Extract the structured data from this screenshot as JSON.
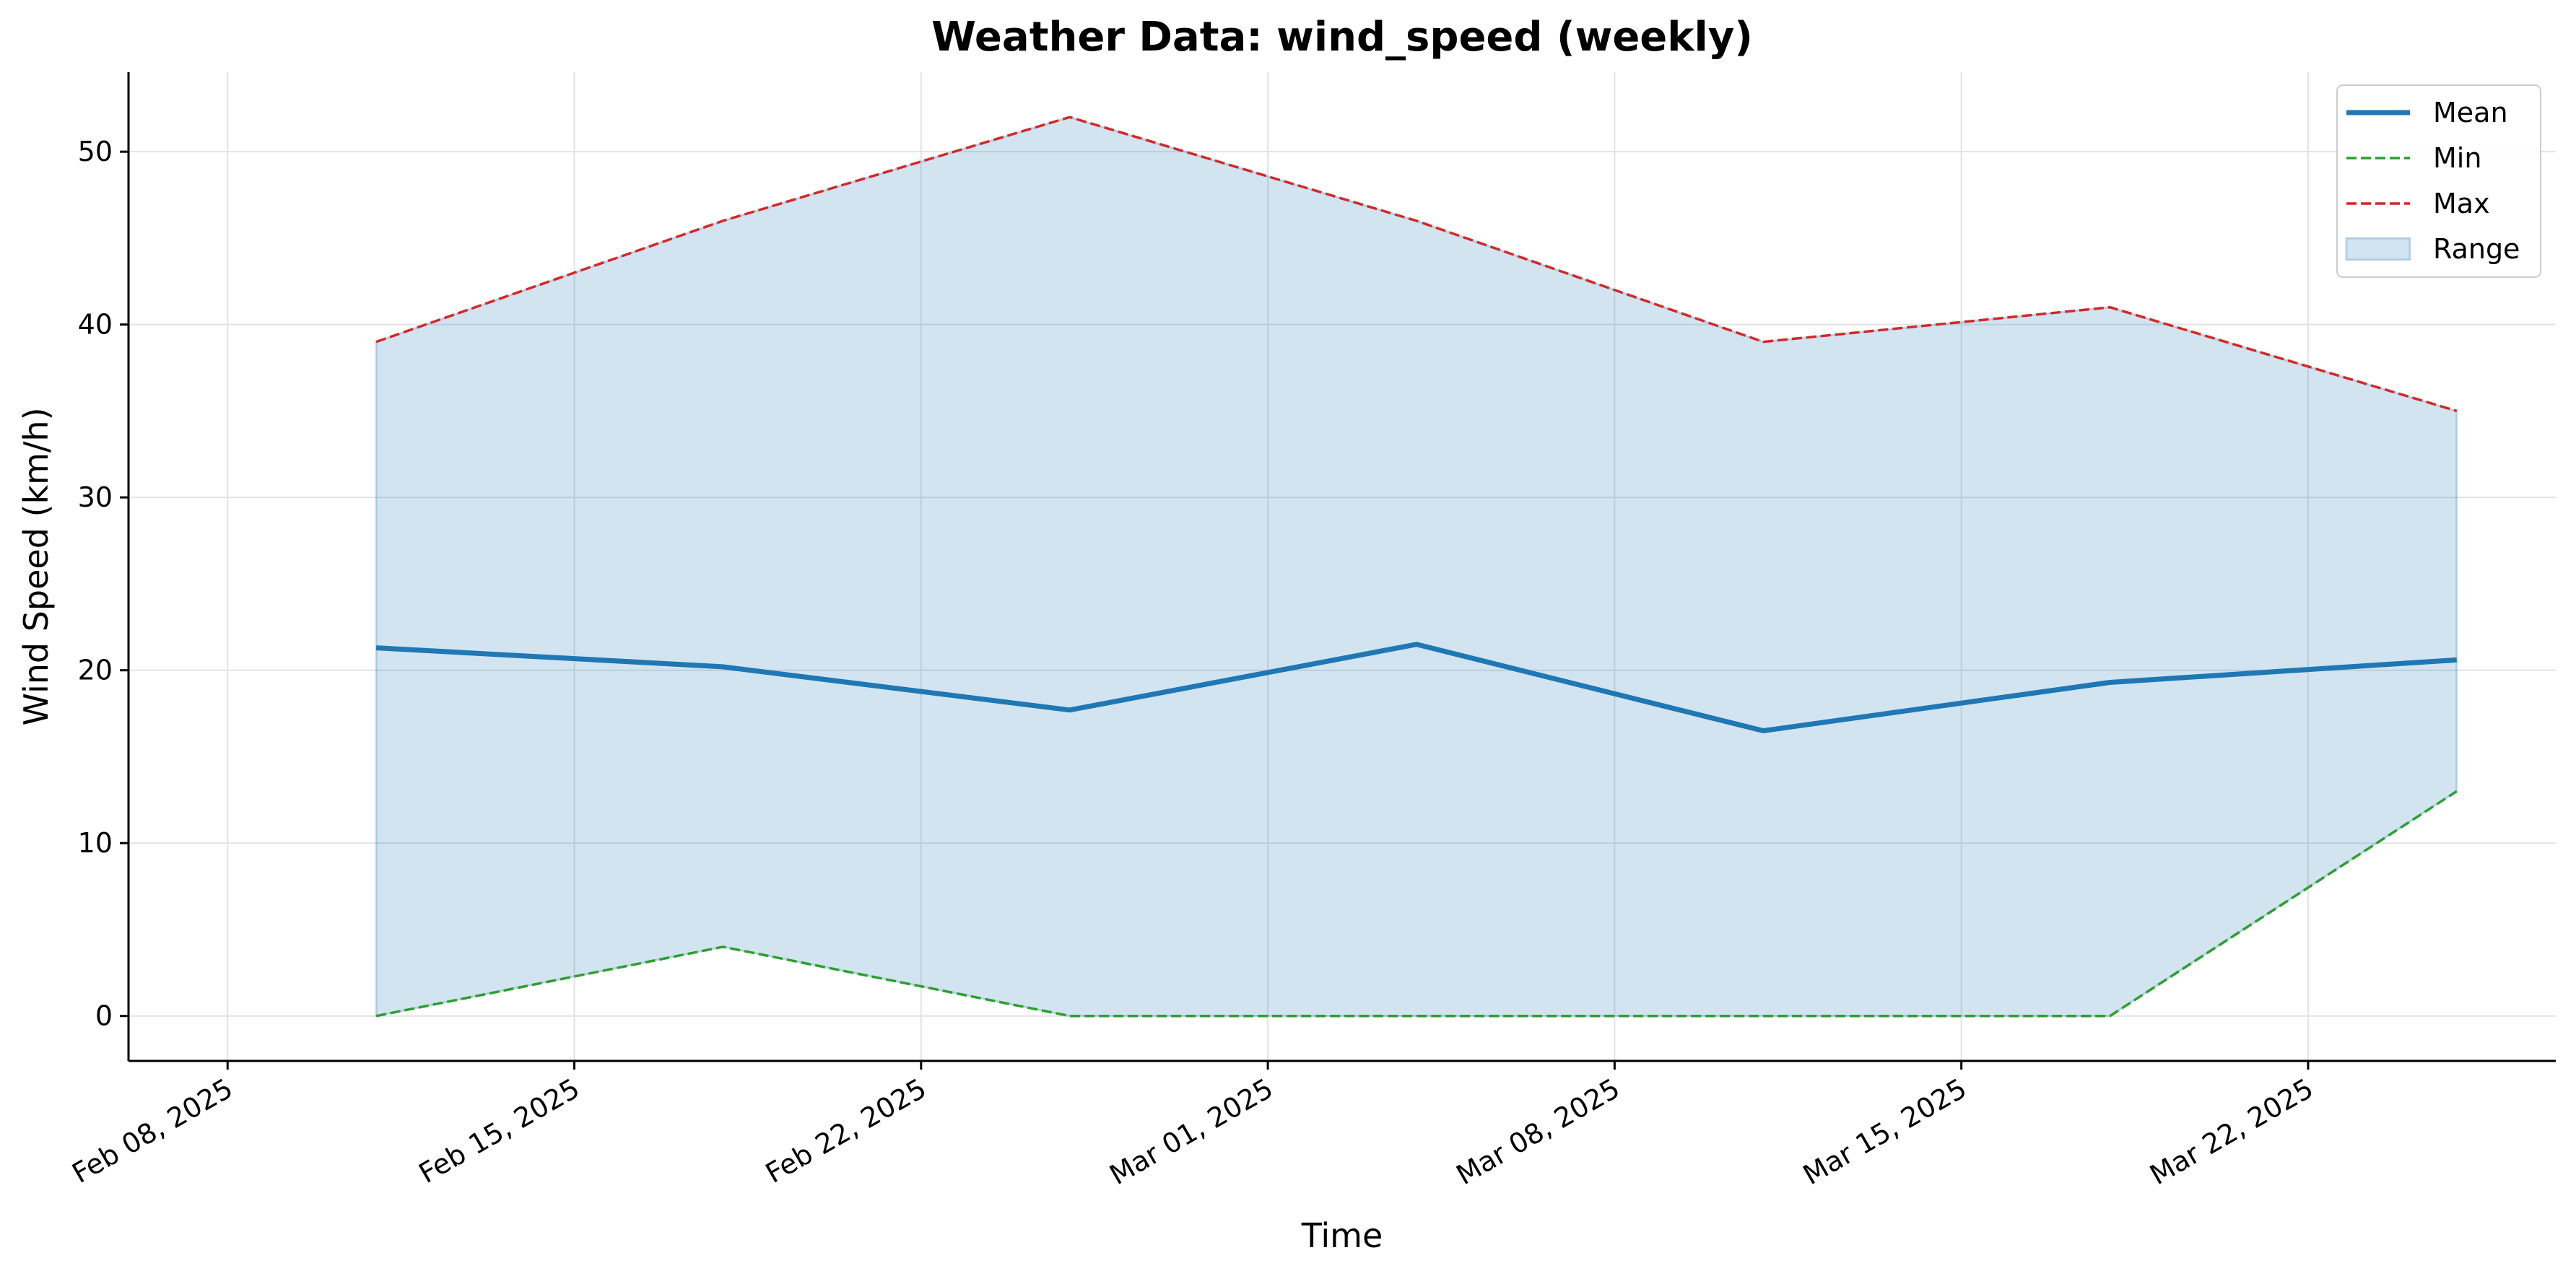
{
  "chart_data": {
    "type": "line",
    "title": "Weather Data: wind_speed (weekly)",
    "xlabel": "Time",
    "ylabel": "Wind Speed (km/h)",
    "x": [
      "2025-02-11",
      "2025-02-18",
      "2025-02-25",
      "2025-03-04",
      "2025-03-11",
      "2025-03-18",
      "2025-03-25"
    ],
    "x_ticks": [
      "Feb 08, 2025",
      "Feb 15, 2025",
      "Feb 22, 2025",
      "Mar 01, 2025",
      "Mar 08, 2025",
      "Mar 15, 2025",
      "Mar 22, 2025"
    ],
    "x_tick_dates": [
      "2025-02-08",
      "2025-02-15",
      "2025-02-22",
      "2025-03-01",
      "2025-03-08",
      "2025-03-15",
      "2025-03-22"
    ],
    "xlim": [
      "2025-02-06",
      "2025-03-27"
    ],
    "y_ticks": [
      0,
      10,
      20,
      30,
      40,
      50
    ],
    "ylim": [
      -2.6,
      54.6
    ],
    "grid": true,
    "legend_position": "top-right",
    "series": [
      {
        "name": "Mean",
        "style": "solid",
        "color": "#1f77b4",
        "values": [
          21.3,
          20.2,
          17.7,
          21.5,
          16.5,
          19.3,
          20.6
        ]
      },
      {
        "name": "Min",
        "style": "dashed",
        "color": "#2ca02c",
        "values": [
          0,
          4,
          0,
          0,
          0,
          0,
          13
        ]
      },
      {
        "name": "Max",
        "style": "dashed",
        "color": "#d62728",
        "values": [
          39,
          46,
          52,
          46,
          39,
          41,
          35
        ]
      },
      {
        "name": "Range",
        "style": "fill",
        "color": "#1f77b4",
        "between": [
          "Min",
          "Max"
        ]
      }
    ]
  }
}
